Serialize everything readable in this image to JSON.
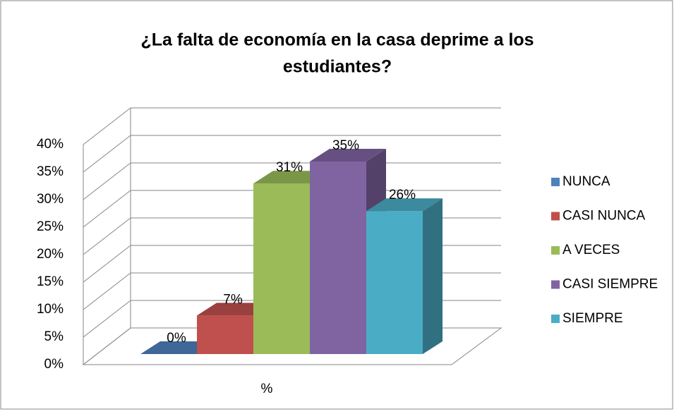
{
  "chart_data": {
    "type": "bar3d",
    "title": [
      "¿La falta de economía en la casa deprime a los",
      "estudiantes?"
    ],
    "categories": [
      "%"
    ],
    "series": [
      {
        "name": "NUNCA",
        "color": "#4f81bd",
        "values": [
          0
        ],
        "value_labels": [
          "0%"
        ]
      },
      {
        "name": "CASI NUNCA",
        "color": "#c0504d",
        "values": [
          7
        ],
        "value_labels": [
          "7%"
        ]
      },
      {
        "name": "A VECES",
        "color": "#9bbb59",
        "values": [
          31
        ],
        "value_labels": [
          "31%"
        ]
      },
      {
        "name": "CASI SIEMPRE",
        "color": "#8064a2",
        "values": [
          35
        ],
        "value_labels": [
          "35%"
        ]
      },
      {
        "name": "SIEMPRE",
        "color": "#4bacc6",
        "values": [
          26
        ],
        "value_labels": [
          "26%"
        ]
      }
    ],
    "ylim": [
      0,
      40
    ],
    "yticks": [
      {
        "value": 0,
        "label": "0%"
      },
      {
        "value": 5,
        "label": "5%"
      },
      {
        "value": 10,
        "label": "10%"
      },
      {
        "value": 15,
        "label": "15%"
      },
      {
        "value": 20,
        "label": "20%"
      },
      {
        "value": 25,
        "label": "25%"
      },
      {
        "value": 30,
        "label": "30%"
      },
      {
        "value": 35,
        "label": "35%"
      },
      {
        "value": 40,
        "label": "40%"
      }
    ],
    "grid": true,
    "legend": "right"
  }
}
